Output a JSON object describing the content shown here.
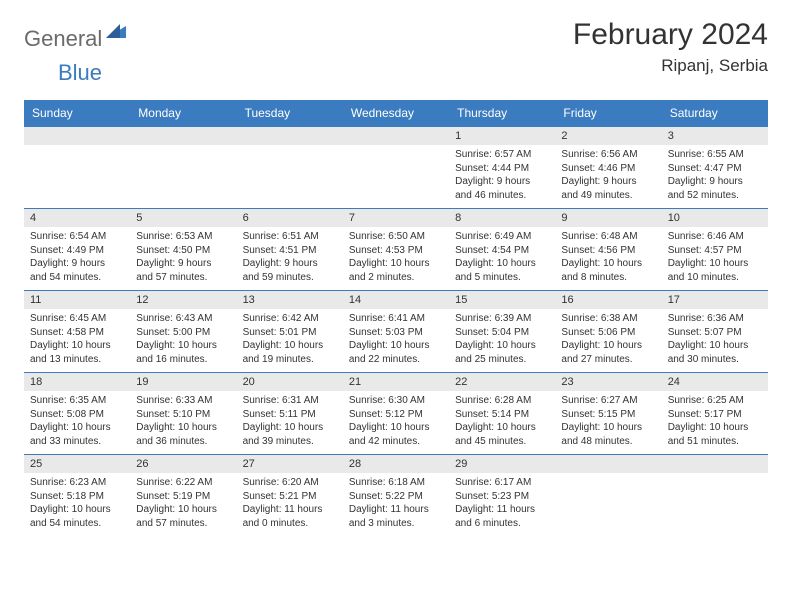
{
  "brand": {
    "name_a": "General",
    "name_b": "Blue"
  },
  "title": "February 2024",
  "location": "Ripanj, Serbia",
  "colors": {
    "header_bg": "#3b7bbf",
    "band_bg": "#e9e9e9",
    "text": "#333333",
    "logo_gray": "#6b6b6b",
    "logo_blue": "#3b7bbf",
    "rule": "#3b7bbf"
  },
  "day_names": [
    "Sunday",
    "Monday",
    "Tuesday",
    "Wednesday",
    "Thursday",
    "Friday",
    "Saturday"
  ],
  "weeks": [
    [
      {
        "n": "",
        "sr": "",
        "ss": "",
        "dl": ""
      },
      {
        "n": "",
        "sr": "",
        "ss": "",
        "dl": ""
      },
      {
        "n": "",
        "sr": "",
        "ss": "",
        "dl": ""
      },
      {
        "n": "",
        "sr": "",
        "ss": "",
        "dl": ""
      },
      {
        "n": "1",
        "sr": "Sunrise: 6:57 AM",
        "ss": "Sunset: 4:44 PM",
        "dl": "Daylight: 9 hours and 46 minutes."
      },
      {
        "n": "2",
        "sr": "Sunrise: 6:56 AM",
        "ss": "Sunset: 4:46 PM",
        "dl": "Daylight: 9 hours and 49 minutes."
      },
      {
        "n": "3",
        "sr": "Sunrise: 6:55 AM",
        "ss": "Sunset: 4:47 PM",
        "dl": "Daylight: 9 hours and 52 minutes."
      }
    ],
    [
      {
        "n": "4",
        "sr": "Sunrise: 6:54 AM",
        "ss": "Sunset: 4:49 PM",
        "dl": "Daylight: 9 hours and 54 minutes."
      },
      {
        "n": "5",
        "sr": "Sunrise: 6:53 AM",
        "ss": "Sunset: 4:50 PM",
        "dl": "Daylight: 9 hours and 57 minutes."
      },
      {
        "n": "6",
        "sr": "Sunrise: 6:51 AM",
        "ss": "Sunset: 4:51 PM",
        "dl": "Daylight: 9 hours and 59 minutes."
      },
      {
        "n": "7",
        "sr": "Sunrise: 6:50 AM",
        "ss": "Sunset: 4:53 PM",
        "dl": "Daylight: 10 hours and 2 minutes."
      },
      {
        "n": "8",
        "sr": "Sunrise: 6:49 AM",
        "ss": "Sunset: 4:54 PM",
        "dl": "Daylight: 10 hours and 5 minutes."
      },
      {
        "n": "9",
        "sr": "Sunrise: 6:48 AM",
        "ss": "Sunset: 4:56 PM",
        "dl": "Daylight: 10 hours and 8 minutes."
      },
      {
        "n": "10",
        "sr": "Sunrise: 6:46 AM",
        "ss": "Sunset: 4:57 PM",
        "dl": "Daylight: 10 hours and 10 minutes."
      }
    ],
    [
      {
        "n": "11",
        "sr": "Sunrise: 6:45 AM",
        "ss": "Sunset: 4:58 PM",
        "dl": "Daylight: 10 hours and 13 minutes."
      },
      {
        "n": "12",
        "sr": "Sunrise: 6:43 AM",
        "ss": "Sunset: 5:00 PM",
        "dl": "Daylight: 10 hours and 16 minutes."
      },
      {
        "n": "13",
        "sr": "Sunrise: 6:42 AM",
        "ss": "Sunset: 5:01 PM",
        "dl": "Daylight: 10 hours and 19 minutes."
      },
      {
        "n": "14",
        "sr": "Sunrise: 6:41 AM",
        "ss": "Sunset: 5:03 PM",
        "dl": "Daylight: 10 hours and 22 minutes."
      },
      {
        "n": "15",
        "sr": "Sunrise: 6:39 AM",
        "ss": "Sunset: 5:04 PM",
        "dl": "Daylight: 10 hours and 25 minutes."
      },
      {
        "n": "16",
        "sr": "Sunrise: 6:38 AM",
        "ss": "Sunset: 5:06 PM",
        "dl": "Daylight: 10 hours and 27 minutes."
      },
      {
        "n": "17",
        "sr": "Sunrise: 6:36 AM",
        "ss": "Sunset: 5:07 PM",
        "dl": "Daylight: 10 hours and 30 minutes."
      }
    ],
    [
      {
        "n": "18",
        "sr": "Sunrise: 6:35 AM",
        "ss": "Sunset: 5:08 PM",
        "dl": "Daylight: 10 hours and 33 minutes."
      },
      {
        "n": "19",
        "sr": "Sunrise: 6:33 AM",
        "ss": "Sunset: 5:10 PM",
        "dl": "Daylight: 10 hours and 36 minutes."
      },
      {
        "n": "20",
        "sr": "Sunrise: 6:31 AM",
        "ss": "Sunset: 5:11 PM",
        "dl": "Daylight: 10 hours and 39 minutes."
      },
      {
        "n": "21",
        "sr": "Sunrise: 6:30 AM",
        "ss": "Sunset: 5:12 PM",
        "dl": "Daylight: 10 hours and 42 minutes."
      },
      {
        "n": "22",
        "sr": "Sunrise: 6:28 AM",
        "ss": "Sunset: 5:14 PM",
        "dl": "Daylight: 10 hours and 45 minutes."
      },
      {
        "n": "23",
        "sr": "Sunrise: 6:27 AM",
        "ss": "Sunset: 5:15 PM",
        "dl": "Daylight: 10 hours and 48 minutes."
      },
      {
        "n": "24",
        "sr": "Sunrise: 6:25 AM",
        "ss": "Sunset: 5:17 PM",
        "dl": "Daylight: 10 hours and 51 minutes."
      }
    ],
    [
      {
        "n": "25",
        "sr": "Sunrise: 6:23 AM",
        "ss": "Sunset: 5:18 PM",
        "dl": "Daylight: 10 hours and 54 minutes."
      },
      {
        "n": "26",
        "sr": "Sunrise: 6:22 AM",
        "ss": "Sunset: 5:19 PM",
        "dl": "Daylight: 10 hours and 57 minutes."
      },
      {
        "n": "27",
        "sr": "Sunrise: 6:20 AM",
        "ss": "Sunset: 5:21 PM",
        "dl": "Daylight: 11 hours and 0 minutes."
      },
      {
        "n": "28",
        "sr": "Sunrise: 6:18 AM",
        "ss": "Sunset: 5:22 PM",
        "dl": "Daylight: 11 hours and 3 minutes."
      },
      {
        "n": "29",
        "sr": "Sunrise: 6:17 AM",
        "ss": "Sunset: 5:23 PM",
        "dl": "Daylight: 11 hours and 6 minutes."
      },
      {
        "n": "",
        "sr": "",
        "ss": "",
        "dl": ""
      },
      {
        "n": "",
        "sr": "",
        "ss": "",
        "dl": ""
      }
    ]
  ]
}
